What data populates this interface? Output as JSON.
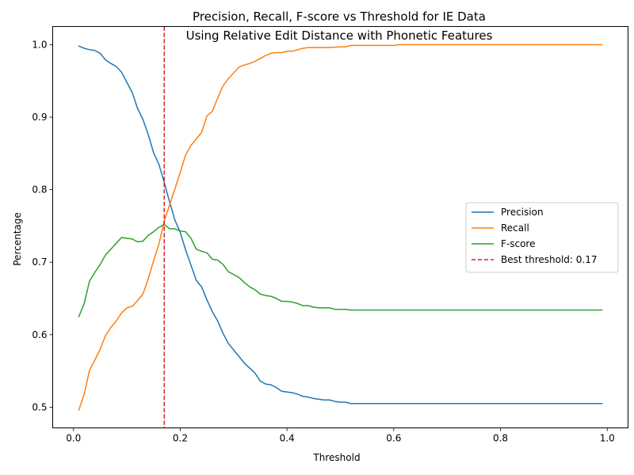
{
  "chart_data": {
    "type": "line",
    "title": "Precision, Recall, F-score vs Threshold for IE Data",
    "subtitle": "Using Relative Edit Distance with Phonetic Features",
    "xlabel": "Threshold",
    "ylabel": "Percentage",
    "xlim": [
      -0.039,
      1.039
    ],
    "ylim": [
      0.4715,
      1.025
    ],
    "xticks": [
      "0.0",
      "0.2",
      "0.4",
      "0.6",
      "0.8",
      "1.0"
    ],
    "yticks": [
      "0.5",
      "0.6",
      "0.7",
      "0.8",
      "0.9",
      "1.0"
    ],
    "grid": false,
    "legend_position": "center-right",
    "series": [
      {
        "name": "Precision",
        "color": "#1f77b4",
        "points": [
          [
            0.01,
            0.998
          ],
          [
            0.02,
            0.995
          ],
          [
            0.03,
            0.993
          ],
          [
            0.04,
            0.992
          ],
          [
            0.05,
            0.988
          ],
          [
            0.06,
            0.979
          ],
          [
            0.07,
            0.974
          ],
          [
            0.08,
            0.97
          ],
          [
            0.09,
            0.962
          ],
          [
            0.1,
            0.948
          ],
          [
            0.11,
            0.934
          ],
          [
            0.12,
            0.912
          ],
          [
            0.13,
            0.897
          ],
          [
            0.14,
            0.876
          ],
          [
            0.15,
            0.851
          ],
          [
            0.16,
            0.835
          ],
          [
            0.17,
            0.81
          ],
          [
            0.18,
            0.783
          ],
          [
            0.19,
            0.758
          ],
          [
            0.2,
            0.741
          ],
          [
            0.21,
            0.717
          ],
          [
            0.22,
            0.696
          ],
          [
            0.23,
            0.675
          ],
          [
            0.24,
            0.666
          ],
          [
            0.25,
            0.648
          ],
          [
            0.26,
            0.632
          ],
          [
            0.27,
            0.619
          ],
          [
            0.28,
            0.602
          ],
          [
            0.29,
            0.588
          ],
          [
            0.3,
            0.579
          ],
          [
            0.31,
            0.57
          ],
          [
            0.32,
            0.561
          ],
          [
            0.33,
            0.554
          ],
          [
            0.34,
            0.547
          ],
          [
            0.35,
            0.536
          ],
          [
            0.36,
            0.532
          ],
          [
            0.37,
            0.531
          ],
          [
            0.38,
            0.527
          ],
          [
            0.39,
            0.522
          ],
          [
            0.4,
            0.521
          ],
          [
            0.41,
            0.52
          ],
          [
            0.42,
            0.518
          ],
          [
            0.43,
            0.515
          ],
          [
            0.44,
            0.514
          ],
          [
            0.45,
            0.512
          ],
          [
            0.46,
            0.511
          ],
          [
            0.47,
            0.51
          ],
          [
            0.48,
            0.51
          ],
          [
            0.49,
            0.508
          ],
          [
            0.5,
            0.507
          ],
          [
            0.51,
            0.507
          ],
          [
            0.52,
            0.505
          ],
          [
            0.53,
            0.505
          ],
          [
            0.6,
            0.505
          ],
          [
            0.7,
            0.505
          ],
          [
            0.8,
            0.505
          ],
          [
            0.9,
            0.505
          ],
          [
            0.99,
            0.505
          ]
        ]
      },
      {
        "name": "Recall",
        "color": "#ff7f0e",
        "points": [
          [
            0.01,
            0.496
          ],
          [
            0.02,
            0.518
          ],
          [
            0.03,
            0.551
          ],
          [
            0.04,
            0.565
          ],
          [
            0.05,
            0.58
          ],
          [
            0.06,
            0.599
          ],
          [
            0.07,
            0.61
          ],
          [
            0.08,
            0.619
          ],
          [
            0.09,
            0.63
          ],
          [
            0.1,
            0.637
          ],
          [
            0.11,
            0.639
          ],
          [
            0.12,
            0.647
          ],
          [
            0.13,
            0.656
          ],
          [
            0.14,
            0.677
          ],
          [
            0.15,
            0.702
          ],
          [
            0.16,
            0.725
          ],
          [
            0.17,
            0.757
          ],
          [
            0.18,
            0.779
          ],
          [
            0.19,
            0.801
          ],
          [
            0.2,
            0.824
          ],
          [
            0.21,
            0.848
          ],
          [
            0.22,
            0.861
          ],
          [
            0.23,
            0.87
          ],
          [
            0.24,
            0.879
          ],
          [
            0.25,
            0.902
          ],
          [
            0.26,
            0.908
          ],
          [
            0.27,
            0.926
          ],
          [
            0.28,
            0.943
          ],
          [
            0.29,
            0.953
          ],
          [
            0.3,
            0.961
          ],
          [
            0.31,
            0.969
          ],
          [
            0.32,
            0.972
          ],
          [
            0.33,
            0.974
          ],
          [
            0.34,
            0.977
          ],
          [
            0.35,
            0.981
          ],
          [
            0.36,
            0.985
          ],
          [
            0.37,
            0.988
          ],
          [
            0.38,
            0.989
          ],
          [
            0.39,
            0.989
          ],
          [
            0.4,
            0.991
          ],
          [
            0.41,
            0.991
          ],
          [
            0.42,
            0.993
          ],
          [
            0.43,
            0.995
          ],
          [
            0.44,
            0.996
          ],
          [
            0.45,
            0.996
          ],
          [
            0.48,
            0.996
          ],
          [
            0.5,
            0.997
          ],
          [
            0.51,
            0.997
          ],
          [
            0.52,
            0.999
          ],
          [
            0.6,
            0.999
          ],
          [
            0.61,
            1.0
          ],
          [
            0.7,
            1.0
          ],
          [
            0.8,
            1.0
          ],
          [
            0.9,
            1.0
          ],
          [
            0.99,
            1.0
          ]
        ]
      },
      {
        "name": "F-score",
        "color": "#2ca02c",
        "points": [
          [
            0.01,
            0.625
          ],
          [
            0.02,
            0.643
          ],
          [
            0.03,
            0.674
          ],
          [
            0.04,
            0.686
          ],
          [
            0.05,
            0.697
          ],
          [
            0.06,
            0.71
          ],
          [
            0.07,
            0.718
          ],
          [
            0.08,
            0.726
          ],
          [
            0.09,
            0.734
          ],
          [
            0.1,
            0.733
          ],
          [
            0.11,
            0.732
          ],
          [
            0.12,
            0.728
          ],
          [
            0.13,
            0.729
          ],
          [
            0.14,
            0.737
          ],
          [
            0.15,
            0.742
          ],
          [
            0.16,
            0.748
          ],
          [
            0.17,
            0.752
          ],
          [
            0.18,
            0.746
          ],
          [
            0.19,
            0.746
          ],
          [
            0.2,
            0.743
          ],
          [
            0.21,
            0.742
          ],
          [
            0.22,
            0.733
          ],
          [
            0.23,
            0.718
          ],
          [
            0.24,
            0.715
          ],
          [
            0.25,
            0.713
          ],
          [
            0.26,
            0.704
          ],
          [
            0.27,
            0.703
          ],
          [
            0.28,
            0.697
          ],
          [
            0.29,
            0.687
          ],
          [
            0.3,
            0.683
          ],
          [
            0.31,
            0.679
          ],
          [
            0.32,
            0.672
          ],
          [
            0.33,
            0.666
          ],
          [
            0.34,
            0.662
          ],
          [
            0.35,
            0.656
          ],
          [
            0.36,
            0.654
          ],
          [
            0.37,
            0.653
          ],
          [
            0.38,
            0.65
          ],
          [
            0.39,
            0.646
          ],
          [
            0.4,
            0.646
          ],
          [
            0.41,
            0.645
          ],
          [
            0.42,
            0.643
          ],
          [
            0.43,
            0.64
          ],
          [
            0.44,
            0.64
          ],
          [
            0.45,
            0.638
          ],
          [
            0.46,
            0.637
          ],
          [
            0.47,
            0.637
          ],
          [
            0.48,
            0.637
          ],
          [
            0.49,
            0.635
          ],
          [
            0.5,
            0.635
          ],
          [
            0.51,
            0.635
          ],
          [
            0.52,
            0.634
          ],
          [
            0.6,
            0.634
          ],
          [
            0.61,
            0.634
          ],
          [
            0.7,
            0.634
          ],
          [
            0.8,
            0.634
          ],
          [
            0.9,
            0.634
          ],
          [
            0.99,
            0.634
          ]
        ]
      }
    ],
    "threshold_line": {
      "name": "Best threshold: 0.17",
      "x": 0.17,
      "color": "#d62728"
    }
  }
}
